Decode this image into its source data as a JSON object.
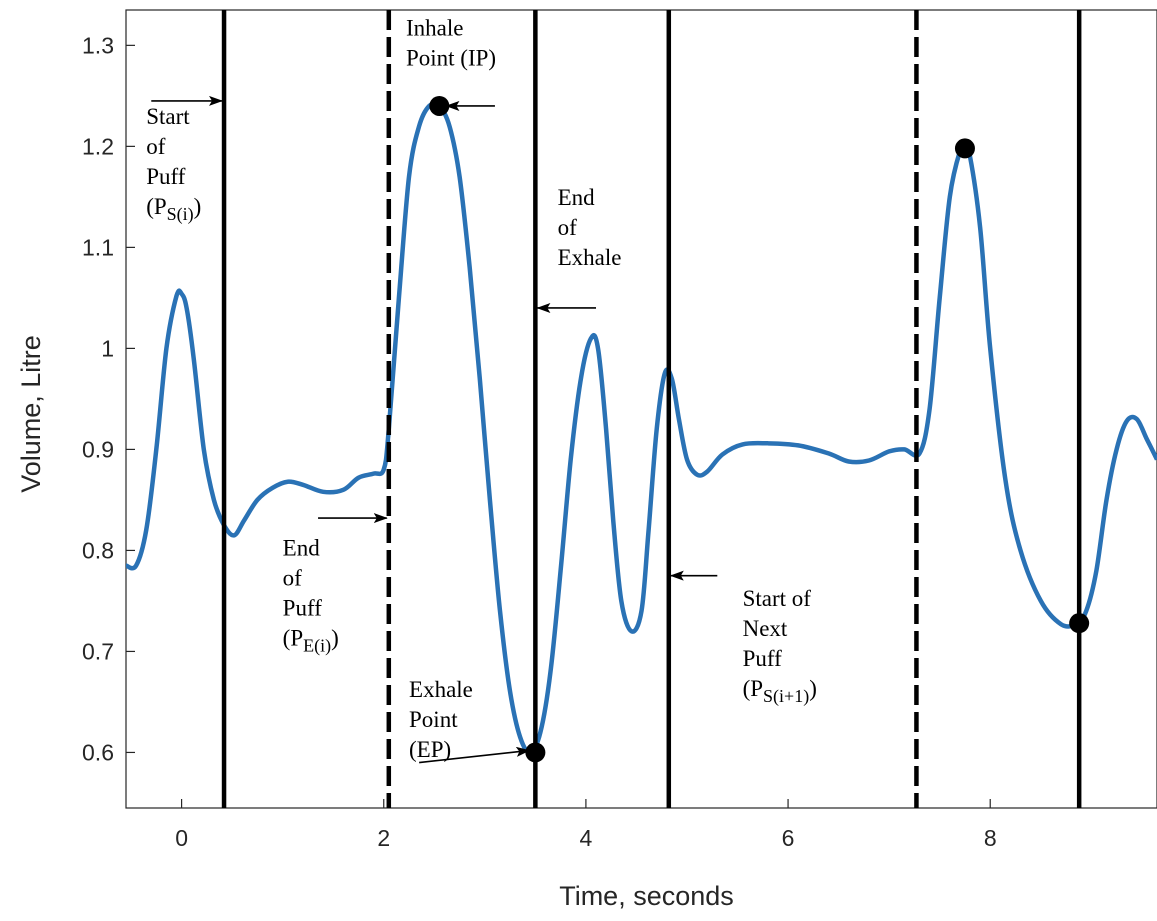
{
  "chart_data": {
    "type": "line",
    "title": "",
    "xlabel": "Time, seconds",
    "ylabel": "Volume, Litre",
    "xlim": [
      -0.55,
      9.65
    ],
    "ylim": [
      0.545,
      1.335
    ],
    "xticks": [
      0,
      2,
      4,
      6,
      8
    ],
    "xtick_labels": [
      "0",
      "2",
      "4",
      "6",
      "8"
    ],
    "yticks": [
      0.6,
      0.7,
      0.8,
      0.9,
      1.0,
      1.1,
      1.2,
      1.3
    ],
    "ytick_labels": [
      "0.6",
      "0.7",
      "0.8",
      "0.9",
      "1",
      "1.1",
      "1.2",
      "1.3"
    ],
    "grid": false,
    "line_color": "#2a72b5",
    "series": [
      {
        "x": [
          -0.55,
          -0.45,
          -0.35,
          -0.25,
          -0.15,
          -0.05,
          0.0,
          0.05,
          0.12,
          0.22,
          0.32,
          0.42,
          0.52,
          0.62,
          0.75,
          0.9,
          1.05,
          1.2,
          1.4,
          1.6,
          1.75,
          1.9,
          2.0,
          2.05,
          2.15,
          2.25,
          2.35,
          2.45,
          2.55,
          2.65,
          2.75,
          2.85,
          2.95,
          3.05,
          3.15,
          3.25,
          3.35,
          3.45,
          3.55,
          3.65,
          3.75,
          3.85,
          3.95,
          4.05,
          4.12,
          4.2,
          4.27,
          4.35,
          4.45,
          4.55,
          4.62,
          4.7,
          4.78,
          4.85,
          4.92,
          5.0,
          5.1,
          5.2,
          5.35,
          5.55,
          5.8,
          6.1,
          6.4,
          6.6,
          6.8,
          7.0,
          7.15,
          7.3,
          7.4,
          7.5,
          7.6,
          7.7,
          7.75,
          7.8,
          7.9,
          8.0,
          8.15,
          8.3,
          8.5,
          8.7,
          8.85,
          8.95,
          9.05,
          9.15,
          9.25,
          9.35,
          9.45,
          9.55,
          9.65
        ],
        "y": [
          0.785,
          0.785,
          0.82,
          0.9,
          1.0,
          1.052,
          1.054,
          1.04,
          0.99,
          0.9,
          0.85,
          0.825,
          0.815,
          0.83,
          0.85,
          0.862,
          0.868,
          0.865,
          0.858,
          0.86,
          0.872,
          0.876,
          0.88,
          0.92,
          1.05,
          1.17,
          1.22,
          1.24,
          1.24,
          1.22,
          1.17,
          1.08,
          0.97,
          0.85,
          0.74,
          0.66,
          0.615,
          0.6,
          0.62,
          0.68,
          0.78,
          0.89,
          0.97,
          1.01,
          1.0,
          0.92,
          0.83,
          0.75,
          0.72,
          0.74,
          0.82,
          0.92,
          0.975,
          0.97,
          0.93,
          0.89,
          0.875,
          0.878,
          0.895,
          0.905,
          0.906,
          0.904,
          0.896,
          0.888,
          0.889,
          0.898,
          0.9,
          0.896,
          0.94,
          1.05,
          1.15,
          1.195,
          1.198,
          1.19,
          1.12,
          1.0,
          0.87,
          0.8,
          0.75,
          0.727,
          0.727,
          0.74,
          0.78,
          0.85,
          0.9,
          0.928,
          0.93,
          0.91,
          0.89
        ]
      }
    ],
    "markers": [
      {
        "x": 2.55,
        "y": 1.24
      },
      {
        "x": 3.5,
        "y": 0.6
      },
      {
        "x": 7.75,
        "y": 1.198
      },
      {
        "x": 8.88,
        "y": 0.728
      }
    ],
    "vlines": [
      {
        "x": 0.42,
        "style": "solid"
      },
      {
        "x": 2.05,
        "style": "dashed"
      },
      {
        "x": 3.5,
        "style": "solid"
      },
      {
        "x": 4.82,
        "style": "solid"
      },
      {
        "x": 7.27,
        "style": "dashed"
      },
      {
        "x": 8.88,
        "style": "solid"
      }
    ],
    "annotations": [
      {
        "lines": [
          {
            "text": "Start"
          },
          {
            "text": "of"
          },
          {
            "text": "Puff"
          },
          {
            "text": "(P",
            "sub": "S(i)",
            "after": ")"
          }
        ],
        "x": -0.35,
        "y": 1.222
      },
      {
        "lines": [
          {
            "text": "End"
          },
          {
            "text": "of"
          },
          {
            "text": "Puff"
          },
          {
            "text": "(P",
            "sub": "E(i)",
            "after": ")"
          }
        ],
        "x": 1.0,
        "y": 0.795
      },
      {
        "lines": [
          {
            "text": "Inhale"
          },
          {
            "text": "Point (IP)"
          }
        ],
        "x": 2.22,
        "y": 1.31
      },
      {
        "lines": [
          {
            "text": "End"
          },
          {
            "text": "of"
          },
          {
            "text": "Exhale"
          }
        ],
        "x": 3.72,
        "y": 1.142
      },
      {
        "lines": [
          {
            "text": "Exhale"
          },
          {
            "text": "Point"
          },
          {
            "text": "(EP)"
          }
        ],
        "x": 2.25,
        "y": 0.655
      },
      {
        "lines": [
          {
            "text": "Start of"
          },
          {
            "text": "Next"
          },
          {
            "text": "Puff"
          },
          {
            "text": "(P",
            "sub": "S(i+1)",
            "after": ")"
          }
        ],
        "x": 5.55,
        "y": 0.745
      }
    ],
    "arrows": [
      {
        "from": [
          -0.3,
          1.245
        ],
        "to": [
          0.4,
          1.245
        ]
      },
      {
        "from": [
          1.35,
          0.832
        ],
        "to": [
          2.03,
          0.832
        ]
      },
      {
        "from": [
          3.1,
          1.24
        ],
        "to": [
          2.62,
          1.24
        ]
      },
      {
        "from": [
          4.1,
          1.04
        ],
        "to": [
          3.52,
          1.04
        ]
      },
      {
        "from": [
          2.35,
          0.59
        ],
        "to": [
          3.44,
          0.602
        ]
      },
      {
        "from": [
          5.3,
          0.775
        ],
        "to": [
          4.84,
          0.775
        ]
      }
    ]
  }
}
